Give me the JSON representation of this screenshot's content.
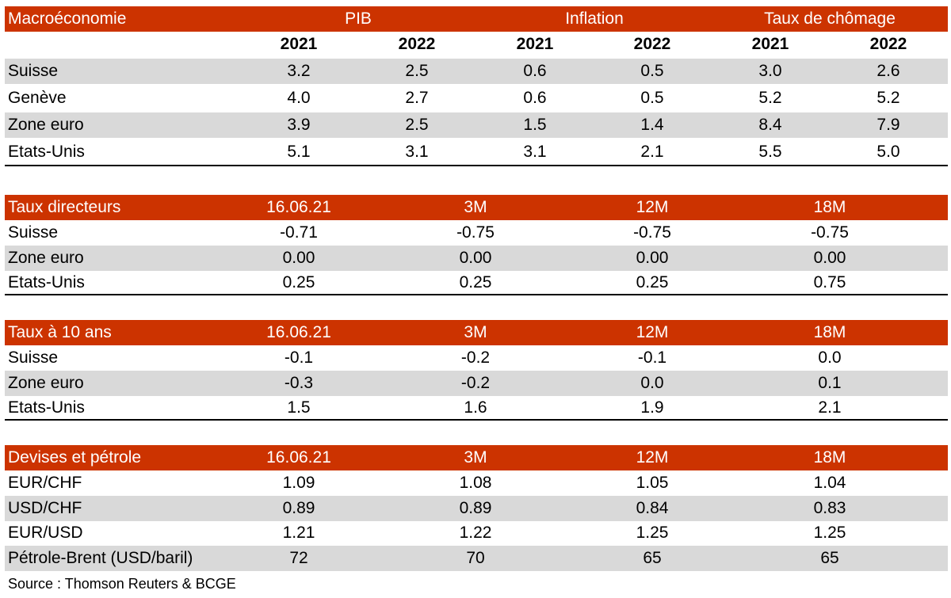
{
  "macro": {
    "title": "Macroéconomie",
    "groups": [
      "PIB",
      "Inflation",
      "Taux de chômage"
    ],
    "years": [
      "2021",
      "2022",
      "2021",
      "2022",
      "2021",
      "2022"
    ],
    "rows": [
      {
        "label": "Suisse",
        "values": [
          "3.2",
          "2.5",
          "0.6",
          "0.5",
          "3.0",
          "2.6"
        ]
      },
      {
        "label": "Genève",
        "values": [
          "4.0",
          "2.7",
          "0.6",
          "0.5",
          "5.2",
          "5.2"
        ]
      },
      {
        "label": "Zone euro",
        "values": [
          "3.9",
          "2.5",
          "1.5",
          "1.4",
          "8.4",
          "7.9"
        ]
      },
      {
        "label": "Etats-Unis",
        "values": [
          "5.1",
          "3.1",
          "3.1",
          "2.1",
          "5.5",
          "5.0"
        ]
      }
    ]
  },
  "policy": {
    "title": "Taux directeurs",
    "headers": [
      "16.06.21",
      "3M",
      "12M",
      "18M"
    ],
    "rows": [
      {
        "label": "Suisse",
        "values": [
          "-0.71",
          "-0.75",
          "-0.75",
          "-0.75"
        ]
      },
      {
        "label": "Zone euro",
        "values": [
          "0.00",
          "0.00",
          "0.00",
          "0.00"
        ]
      },
      {
        "label": "Etats-Unis",
        "values": [
          "0.25",
          "0.25",
          "0.25",
          "0.75"
        ]
      }
    ]
  },
  "bonds": {
    "title": "Taux à 10 ans",
    "headers": [
      "16.06.21",
      "3M",
      "12M",
      "18M"
    ],
    "rows": [
      {
        "label": "Suisse",
        "values": [
          "-0.1",
          "-0.2",
          "-0.1",
          "0.0"
        ]
      },
      {
        "label": "Zone euro",
        "values": [
          "-0.3",
          "-0.2",
          "0.0",
          "0.1"
        ]
      },
      {
        "label": "Etats-Unis",
        "values": [
          "1.5",
          "1.6",
          "1.9",
          "2.1"
        ]
      }
    ]
  },
  "fx": {
    "title": "Devises et pétrole",
    "headers": [
      "16.06.21",
      "3M",
      "12M",
      "18M"
    ],
    "rows": [
      {
        "label": "EUR/CHF",
        "values": [
          "1.09",
          "1.08",
          "1.05",
          "1.04"
        ]
      },
      {
        "label": "USD/CHF",
        "values": [
          "0.89",
          "0.89",
          "0.84",
          "0.83"
        ]
      },
      {
        "label": "EUR/USD",
        "values": [
          "1.21",
          "1.22",
          "1.25",
          "1.25"
        ]
      },
      {
        "label": "Pétrole-Brent (USD/baril)",
        "values": [
          "72",
          "70",
          "65",
          "65"
        ]
      }
    ]
  },
  "source": "Source : Thomson Reuters & BCGE"
}
